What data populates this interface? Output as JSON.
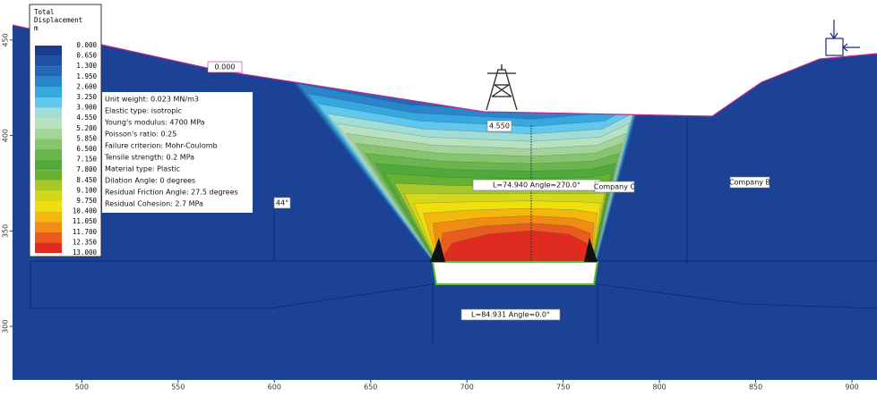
{
  "chart_data": {
    "type": "contour",
    "legend_title": [
      "Total",
      "Displacement",
      "m"
    ],
    "levels": [
      {
        "value": 0,
        "label": "0.000"
      },
      {
        "value": 0.65,
        "label": "0.650"
      },
      {
        "value": 1.3,
        "label": "1.300"
      },
      {
        "value": 1.95,
        "label": "1.950"
      },
      {
        "value": 2.6,
        "label": "2.600"
      },
      {
        "value": 3.25,
        "label": "3.250"
      },
      {
        "value": 3.9,
        "label": "3.900"
      },
      {
        "value": 4.55,
        "label": "4.550"
      },
      {
        "value": 5.2,
        "label": "5.200"
      },
      {
        "value": 5.85,
        "label": "5.850"
      },
      {
        "value": 6.5,
        "label": "6.500"
      },
      {
        "value": 7.15,
        "label": "7.150"
      },
      {
        "value": 7.8,
        "label": "7.800"
      },
      {
        "value": 8.45,
        "label": "8.450"
      },
      {
        "value": 9.1,
        "label": "9.100"
      },
      {
        "value": 9.75,
        "label": "9.750"
      },
      {
        "value": 10.4,
        "label": "10.400"
      },
      {
        "value": 11.05,
        "label": "11.050"
      },
      {
        "value": 11.7,
        "label": "11.700"
      },
      {
        "value": 12.35,
        "label": "12.350"
      },
      {
        "value": 13,
        "label": "13.000"
      }
    ],
    "colors": [
      "#1b3d8f",
      "#1f52a6",
      "#2367b7",
      "#2a85cb",
      "#37a7df",
      "#63c6ec",
      "#a2dcd6",
      "#b7e1bf",
      "#a5d39a",
      "#86c46e",
      "#6bb64c",
      "#52a93b",
      "#66b132",
      "#a7c827",
      "#d6d719",
      "#f0df10",
      "#f4b80d",
      "#f08c12",
      "#e85c1d",
      "#e02c20"
    ],
    "material_properties": [
      "Unit weight: 0.023 MN/m3",
      "Elastic type: isotropic",
      "Young's modulus: 4700 MPa",
      "Poisson's ratio: 0.25",
      "Failure criterion: Mohr-Coulomb",
      "Tensile strength: 0.2 MPa",
      "Material type: Plastic",
      "Dilation Angle: 0 degrees",
      "Residual Friction Angle: 27.5 degrees",
      "Residual Cohesion: 2.7 MPa"
    ],
    "annotations": [
      "0.000",
      "4.550",
      "L=74.940  Angle=270.0°",
      "Company C",
      "Company B",
      "44°",
      "L=84.931  Angle=0.0°"
    ],
    "xlim": [
      464,
      913
    ],
    "xticks": [
      500,
      550,
      600,
      650,
      700,
      750,
      800,
      850,
      900
    ],
    "ylim": [
      272,
      471
    ],
    "yticks": [
      300,
      350,
      400,
      450
    ]
  }
}
